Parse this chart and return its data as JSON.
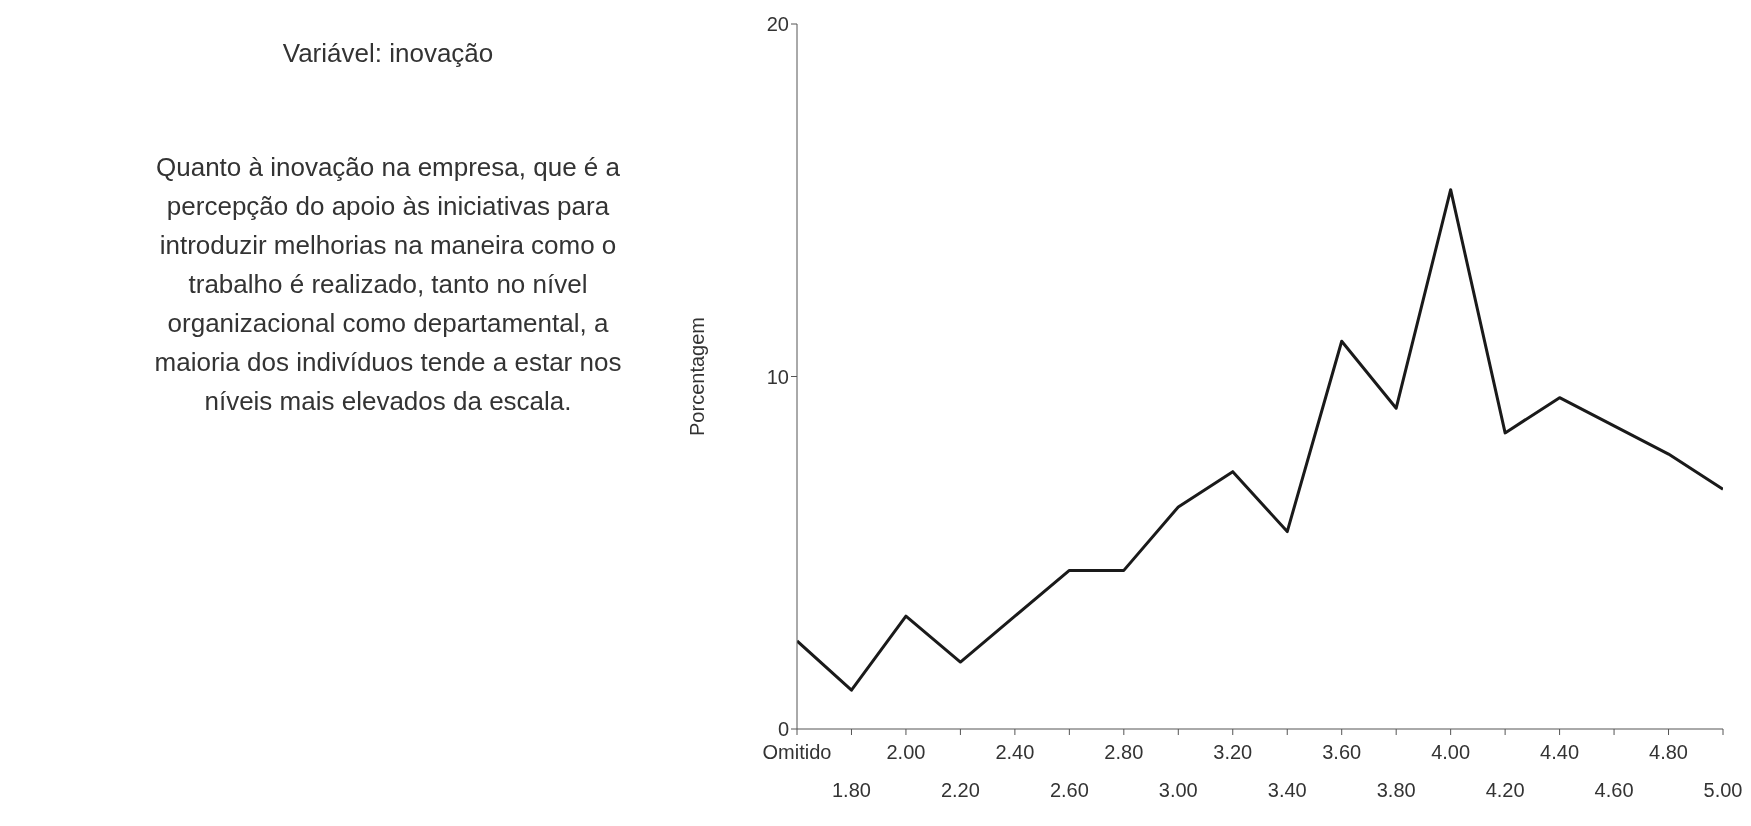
{
  "chart_data": {
    "type": "line",
    "title": "Variável: inovação",
    "annotations": [
      "Quanto à inovação na empresa, que é a percepção do apoio às iniciativas para introduzir melhorias na maneira como o trabalho é realizado, tanto no nível organizacional como departamental, a maioria dos indivíduos tende a estar nos níveis mais elevados da escala."
    ],
    "ylabel": "Porcentagem",
    "categories": [
      "Omitido",
      "1.80",
      "2.00",
      "2.20",
      "2.40",
      "2.60",
      "2.80",
      "3.00",
      "3.20",
      "3.40",
      "3.60",
      "3.80",
      "4.00",
      "4.20",
      "4.40",
      "4.60",
      "4.80",
      "5.00"
    ],
    "series": [
      {
        "color": "#1a1a1a",
        "values": [
          2.5,
          1.1,
          3.2,
          1.9,
          3.2,
          4.5,
          4.5,
          6.3,
          7.3,
          5.6,
          11.0,
          9.1,
          15.3,
          8.4,
          9.4,
          8.6,
          7.8,
          6.8
        ]
      }
    ],
    "ylim": [
      0,
      20
    ],
    "yticks": [
      0,
      10,
      20
    ],
    "grid": false,
    "legend": false,
    "marker": "none",
    "line_style": "solid"
  }
}
